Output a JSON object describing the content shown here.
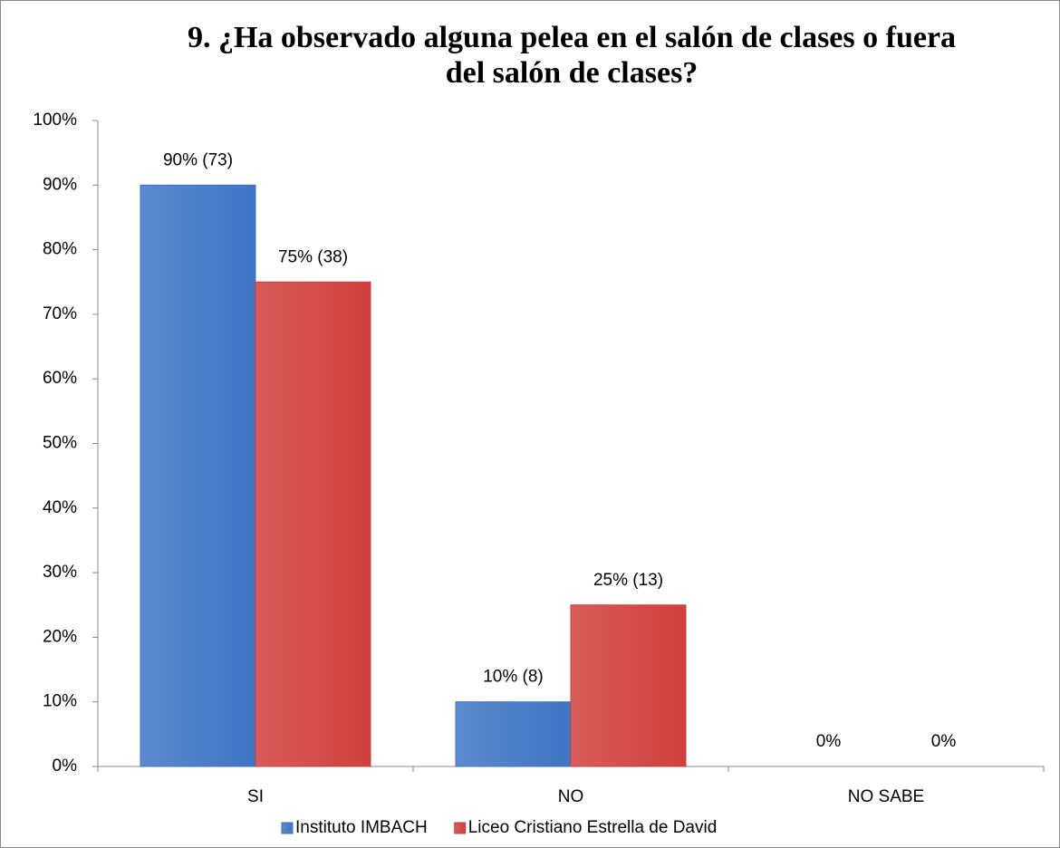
{
  "chart_data": {
    "type": "bar",
    "title": "9. ¿Ha observado alguna pelea en el salón de clases o fuera del salón de clases?",
    "categories": [
      "SI",
      "NO",
      "NO SABE"
    ],
    "series": [
      {
        "name": "Instituto IMBACH",
        "color": "#3f75c4",
        "values": [
          90,
          10,
          0
        ],
        "value_labels": [
          "90% (73)",
          "10% (8)",
          "0%"
        ]
      },
      {
        "name": "Liceo Cristiano Estrella de David",
        "color": "#d0403d",
        "values": [
          75,
          25,
          0
        ],
        "value_labels": [
          "75% (38)",
          "25% (13)",
          "0%"
        ]
      }
    ],
    "ylim": [
      0,
      100
    ],
    "yticks": [
      {
        "value": 0,
        "label": "0%"
      },
      {
        "value": 10,
        "label": "10%"
      },
      {
        "value": 20,
        "label": "20%"
      },
      {
        "value": 30,
        "label": "30%"
      },
      {
        "value": 40,
        "label": "40%"
      },
      {
        "value": 50,
        "label": "50%"
      },
      {
        "value": 60,
        "label": "60%"
      },
      {
        "value": 70,
        "label": "70%"
      },
      {
        "value": 80,
        "label": "80%"
      },
      {
        "value": 90,
        "label": "90%"
      },
      {
        "value": 100,
        "label": "100%"
      }
    ],
    "legend": "bottom"
  }
}
